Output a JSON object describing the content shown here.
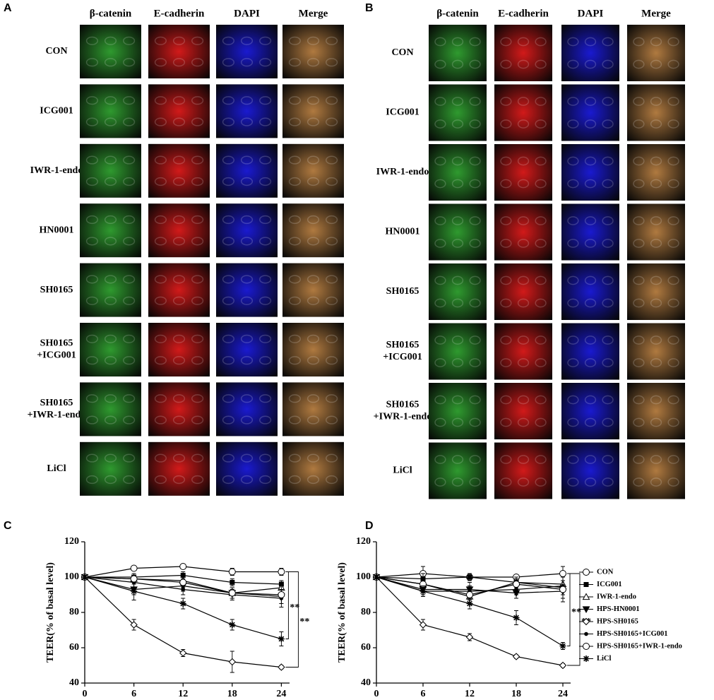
{
  "panels": [
    {
      "label": "A",
      "columns": [
        "β-catenin",
        "E-cadherin",
        "DAPI",
        "Merge"
      ],
      "colors": [
        "#2f9a2f",
        "#d21a1a",
        "#1a1ad0",
        "#b07a40"
      ],
      "rows": [
        [
          "CON"
        ],
        [
          "ICG001"
        ],
        [
          "IWR-1-endo"
        ],
        [
          "HN0001"
        ],
        [
          "SH0165"
        ],
        [
          "SH0165",
          "+ICG001"
        ],
        [
          "SH0165",
          "+IWR-1-endo"
        ],
        [
          "LiCl"
        ]
      ]
    },
    {
      "label": "B",
      "columns": [
        "β-catenin",
        "E-cadherin",
        "DAPI",
        "Merge"
      ],
      "colors": [
        "#2f9a2f",
        "#d21a1a",
        "#1a1ad0",
        "#b07a40"
      ],
      "rows": [
        [
          "CON"
        ],
        [
          "ICG001"
        ],
        [
          "IWR-1-endo"
        ],
        [
          "HN0001"
        ],
        [
          "SH0165"
        ],
        [
          "SH0165",
          "+ICG001"
        ],
        [
          "SH0165",
          "+IWR-1-endo"
        ],
        [
          "LiCl"
        ]
      ]
    }
  ],
  "chart_data": [
    {
      "type": "line",
      "label": "C",
      "y_label": "TEER(% of basal level)",
      "color": "#000000",
      "x": [
        0,
        6,
        12,
        18,
        24
      ],
      "xlim": [
        0,
        25
      ],
      "xticks": [
        0,
        6,
        12,
        18,
        24
      ],
      "ylim": [
        40,
        120
      ],
      "yticks": [
        40,
        60,
        80,
        100,
        120
      ],
      "series": [
        {
          "marker": "circle-open",
          "values": [
            100,
            105,
            106,
            103,
            103
          ],
          "errors": [
            1,
            1,
            1,
            2,
            2
          ]
        },
        {
          "marker": "square",
          "values": [
            100,
            100,
            101,
            97,
            96
          ],
          "errors": [
            1,
            2,
            2,
            2,
            2
          ]
        },
        {
          "marker": "triangle-open",
          "values": [
            100,
            99,
            98,
            91,
            94
          ],
          "errors": [
            1,
            2,
            2,
            3,
            3
          ]
        },
        {
          "marker": "triangle-down",
          "values": [
            100,
            93,
            95,
            91,
            89
          ],
          "errors": [
            1,
            3,
            3,
            3,
            4
          ]
        },
        {
          "marker": "diamond-open",
          "values": [
            100,
            73,
            57,
            52,
            49
          ],
          "errors": [
            1,
            3,
            2,
            6,
            1
          ]
        },
        {
          "marker": "dot",
          "values": [
            100,
            97,
            93,
            90,
            88
          ],
          "errors": [
            1,
            3,
            3,
            3,
            5
          ]
        },
        {
          "marker": "circle-open",
          "values": [
            100,
            99,
            97,
            91,
            90
          ],
          "errors": [
            1,
            2,
            3,
            3,
            5
          ]
        },
        {
          "marker": "asterisk",
          "values": [
            100,
            92,
            85,
            73,
            65
          ],
          "errors": [
            1,
            5,
            3,
            3,
            4
          ]
        }
      ],
      "brackets": [
        {
          "from": 0,
          "to": 7,
          "text": "**"
        },
        {
          "from": 0,
          "to": 4,
          "text": "**"
        }
      ]
    },
    {
      "type": "line",
      "label": "D",
      "y_label": "TEER(% of basal level)",
      "color": "#000000",
      "legend": "right",
      "x": [
        0,
        6,
        12,
        18,
        24
      ],
      "xlim": [
        0,
        25
      ],
      "xticks": [
        0,
        6,
        12,
        18,
        24
      ],
      "ylim": [
        40,
        120
      ],
      "yticks": [
        40,
        60,
        80,
        100,
        120
      ],
      "series": [
        {
          "name": "CON",
          "marker": "circle-open",
          "values": [
            100,
            102,
            100,
            100,
            102
          ],
          "errors": [
            1,
            4,
            2,
            1,
            4
          ]
        },
        {
          "name": "ICG001",
          "marker": "square",
          "values": [
            100,
            99,
            100,
            97,
            94
          ],
          "errors": [
            1,
            3,
            2,
            3,
            4
          ]
        },
        {
          "name": "IWR-1-endo",
          "marker": "triangle-open",
          "values": [
            100,
            96,
            89,
            97,
            96
          ],
          "errors": [
            1,
            3,
            4,
            3,
            4
          ]
        },
        {
          "name": "HPS-HN0001",
          "marker": "triangle-down",
          "values": [
            100,
            93,
            93,
            91,
            92
          ],
          "errors": [
            1,
            3,
            4,
            3,
            6
          ]
        },
        {
          "name": "HPS-SH0165",
          "marker": "diamond-open",
          "values": [
            100,
            73,
            66,
            55,
            50
          ],
          "errors": [
            1,
            3,
            2,
            1,
            1
          ]
        },
        {
          "name": "HPS-SH0165+ICG001",
          "marker": "dot",
          "values": [
            100,
            92,
            92,
            93,
            95
          ],
          "errors": [
            1,
            3,
            3,
            3,
            5
          ]
        },
        {
          "name": "HPS-SH0165+IWR-1-endo",
          "marker": "circle-open",
          "values": [
            100,
            96,
            90,
            96,
            93
          ],
          "errors": [
            1,
            3,
            3,
            3,
            5
          ]
        },
        {
          "name": "LiCl",
          "marker": "asterisk",
          "values": [
            100,
            92,
            85,
            77,
            61
          ],
          "errors": [
            1,
            3,
            3,
            4,
            2
          ]
        }
      ],
      "brackets": [
        {
          "from": 0,
          "to": 7,
          "text": "**"
        },
        {
          "from": 0,
          "to": 4,
          "text": "**"
        }
      ]
    }
  ]
}
